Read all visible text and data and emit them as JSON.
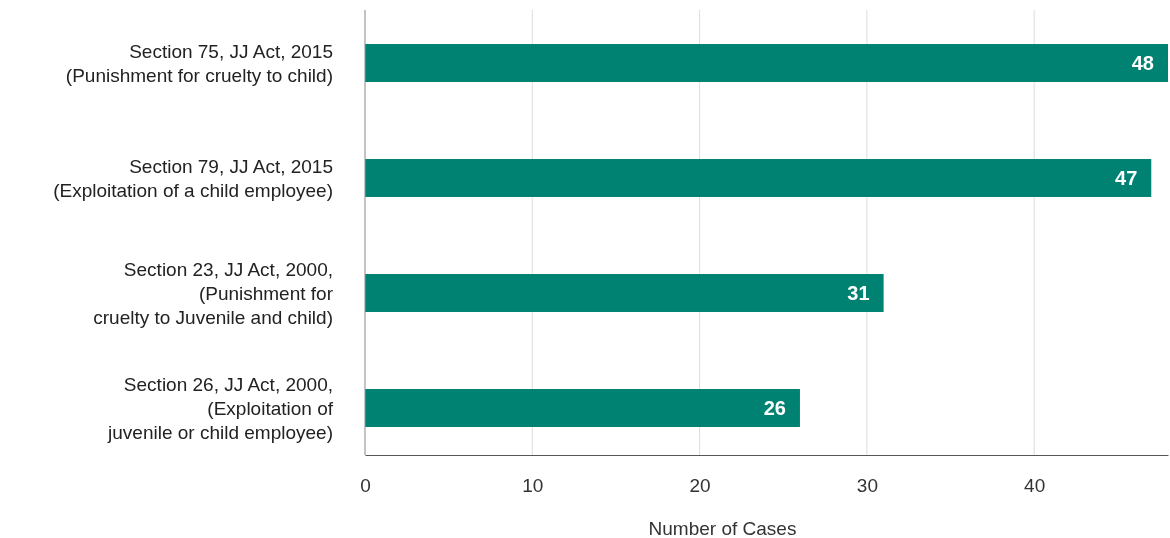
{
  "chart_data": {
    "type": "bar",
    "orientation": "horizontal",
    "xlabel": "Number of Cases",
    "categories": [
      "Section 75, JJ Act, 2015\n(Punishment for cruelty to child)",
      "Section 79, JJ Act, 2015\n(Exploitation of a child employee)",
      "Section 23, JJ Act, 2000,\n(Punishment for\ncruelty to Juvenile and child)",
      "Section 26, JJ Act, 2000,\n(Exploitation of\njuvenile or child employee)"
    ],
    "values": [
      48,
      47,
      31,
      26
    ],
    "color": "#008272",
    "xlim": [
      0,
      48
    ],
    "xticks": [
      0,
      10,
      20,
      30,
      40
    ],
    "grid": "x",
    "data_labels": true
  }
}
